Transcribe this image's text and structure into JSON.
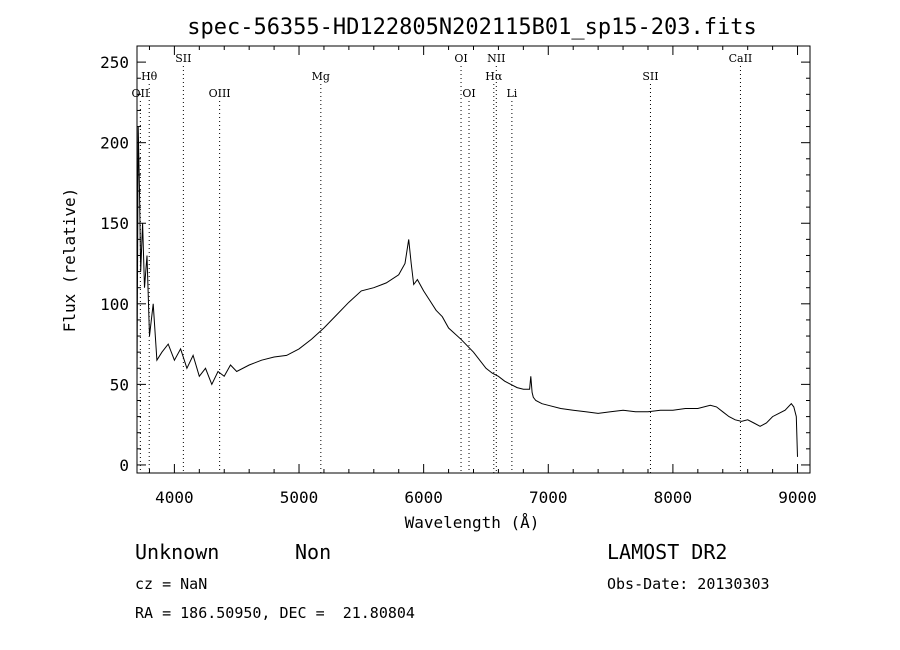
{
  "chart_data": {
    "type": "line",
    "title": "spec-56355-HD122805N202115B01_sp15-203.fits",
    "xlabel": "Wavelength (Å)",
    "ylabel": "Flux (relative)",
    "xlim": [
      3700,
      9100
    ],
    "ylim": [
      -5,
      260
    ],
    "xticks": [
      4000,
      5000,
      6000,
      7000,
      8000,
      9000
    ],
    "yticks": [
      0,
      50,
      100,
      150,
      200,
      250
    ],
    "grid": false,
    "series": [
      {
        "x": [
          3700,
          3710,
          3720,
          3730,
          3745,
          3760,
          3780,
          3800,
          3830,
          3860,
          3900,
          3950,
          4000,
          4050,
          4100,
          4150,
          4200,
          4250,
          4300,
          4350,
          4400,
          4450,
          4500,
          4600,
          4700,
          4800,
          4900,
          5000,
          5100,
          5200,
          5300,
          5400,
          5500,
          5600,
          5700,
          5800,
          5850,
          5880,
          5900,
          5920,
          5950,
          6000,
          6050,
          6100,
          6150,
          6200,
          6300,
          6400,
          6500,
          6550,
          6600,
          6650,
          6700,
          6750,
          6800,
          6850,
          6860,
          6870,
          6880,
          6900,
          6950,
          7000,
          7100,
          7200,
          7300,
          7400,
          7500,
          7600,
          7700,
          7800,
          7900,
          8000,
          8100,
          8200,
          8300,
          8350,
          8400,
          8450,
          8500,
          8550,
          8600,
          8650,
          8700,
          8750,
          8800,
          8850,
          8900,
          8950,
          8970,
          8990,
          9000
        ],
        "values": [
          50,
          210,
          170,
          120,
          150,
          110,
          130,
          80,
          100,
          65,
          70,
          75,
          65,
          72,
          60,
          68,
          55,
          60,
          50,
          58,
          55,
          62,
          58,
          62,
          65,
          67,
          68,
          72,
          78,
          85,
          93,
          101,
          108,
          110,
          113,
          118,
          125,
          140,
          125,
          112,
          115,
          108,
          102,
          96,
          92,
          85,
          78,
          70,
          60,
          57,
          55,
          52,
          50,
          48,
          47,
          47,
          55,
          45,
          42,
          40,
          38,
          37,
          35,
          34,
          33,
          32,
          33,
          34,
          33,
          33,
          34,
          34,
          35,
          35,
          37,
          36,
          33,
          30,
          28,
          27,
          28,
          26,
          24,
          26,
          30,
          32,
          34,
          38,
          36,
          30,
          5
        ]
      }
    ],
    "lines": [
      {
        "label": "OII",
        "x": 3727,
        "row": 3
      },
      {
        "label": "Hθ",
        "x": 3798,
        "row": 2
      },
      {
        "label": "SII",
        "x": 4072,
        "row": 1
      },
      {
        "label": "OIII",
        "x": 4363,
        "row": 3
      },
      {
        "label": "Mg",
        "x": 5175,
        "row": 2
      },
      {
        "label": "OI",
        "x": 6300,
        "row": 1
      },
      {
        "label": "OI",
        "x": 6364,
        "row": 3
      },
      {
        "label": "Hα",
        "x": 6563,
        "row": 2
      },
      {
        "label": "NII",
        "x": 6583,
        "row": 1
      },
      {
        "label": "Li",
        "x": 6708,
        "row": 3
      },
      {
        "label": "SII",
        "x": 7820,
        "row": 2
      },
      {
        "label": "CaII",
        "x": 8542,
        "row": 1
      }
    ]
  },
  "info": {
    "class": "Unknown",
    "subclass": "Non",
    "survey": "LAMOST DR2",
    "cz": "cz = NaN",
    "obs_date": "Obs-Date: 20130303",
    "coords": "RA = 186.50950, DEC =  21.80804"
  }
}
